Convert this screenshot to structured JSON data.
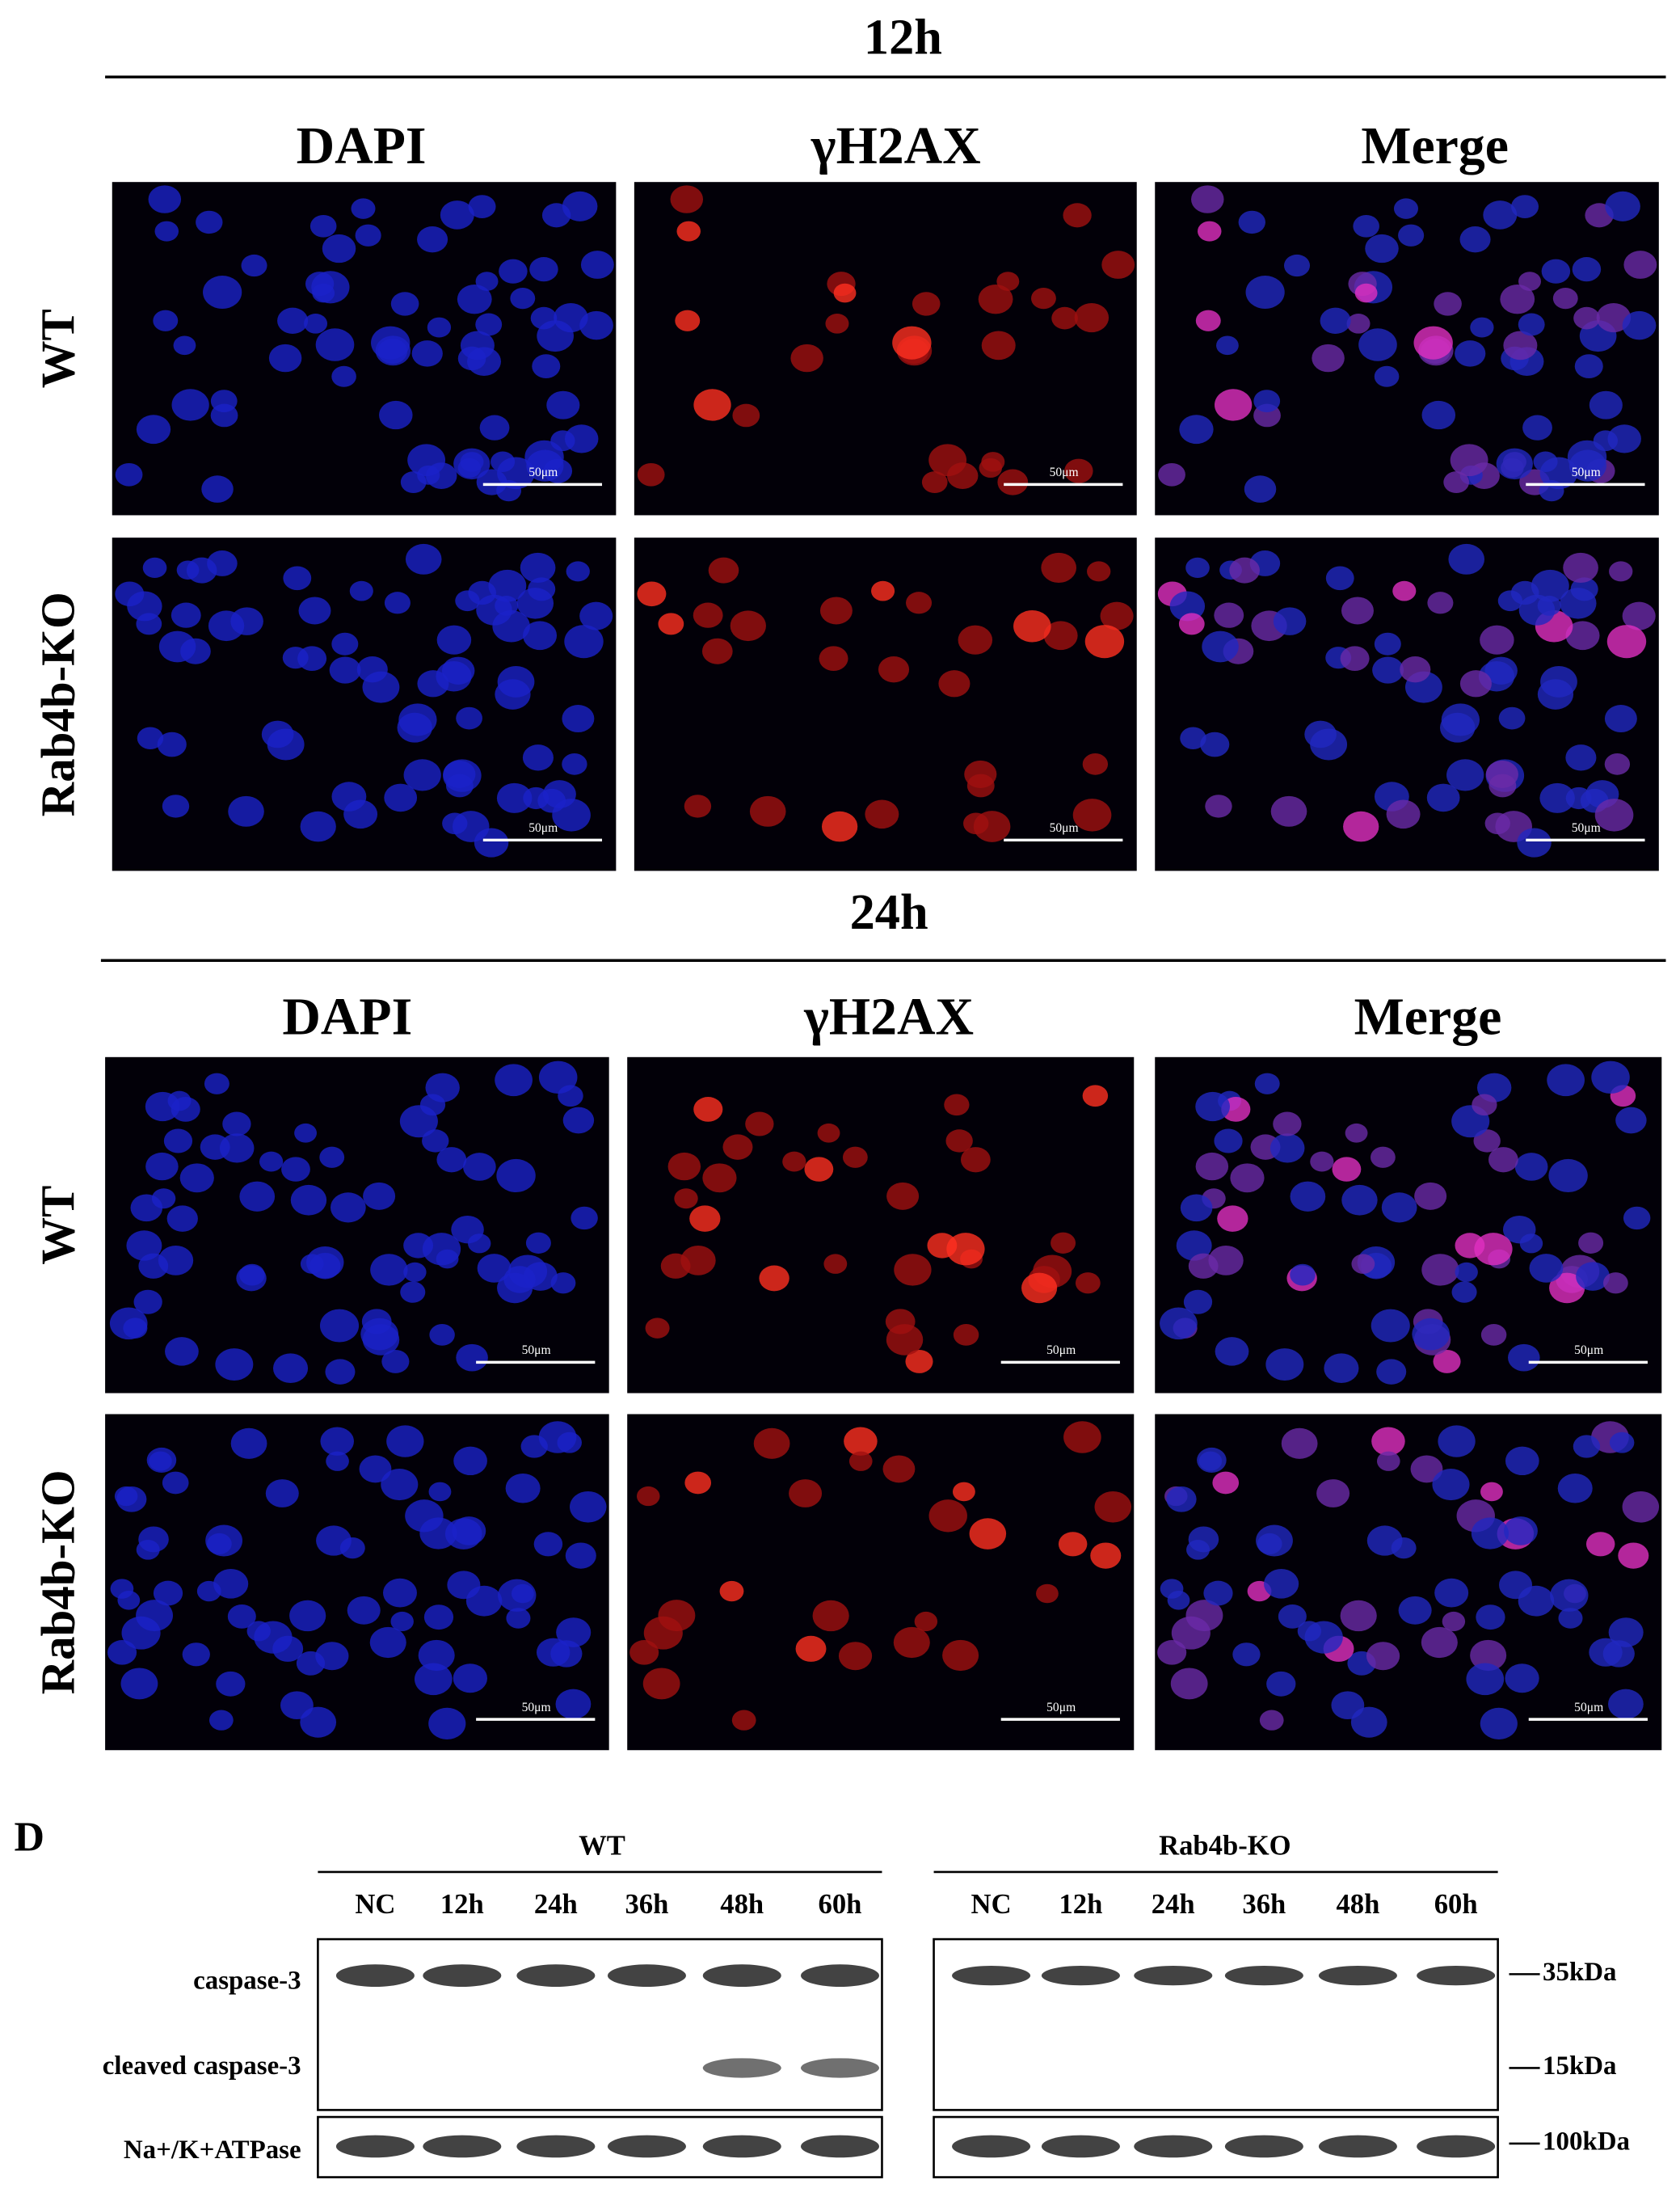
{
  "sections": [
    {
      "time": "12h",
      "columns": [
        "DAPI",
        "γH2AX",
        "Merge"
      ],
      "rows": [
        "WT",
        "Rab4b-KO"
      ],
      "scale_bar": "50μm"
    },
    {
      "time": "24h",
      "columns": [
        "DAPI",
        "γH2AX",
        "Merge"
      ],
      "rows": [
        "WT",
        "Rab4b-KO"
      ],
      "scale_bar": "50μm"
    }
  ],
  "blot": {
    "panel": "D",
    "groups": [
      {
        "name": "WT",
        "lanes": [
          "NC",
          "12h",
          "24h",
          "36h",
          "48h",
          "60h"
        ]
      },
      {
        "name": "Rab4b-KO",
        "lanes": [
          "NC",
          "12h",
          "24h",
          "36h",
          "48h",
          "60h"
        ]
      }
    ],
    "rows": [
      "caspase-3",
      "cleaved caspase-3",
      "Na+/K+ATPase"
    ],
    "markers": [
      "35kDa",
      "15kDa",
      "100kDa"
    ]
  }
}
